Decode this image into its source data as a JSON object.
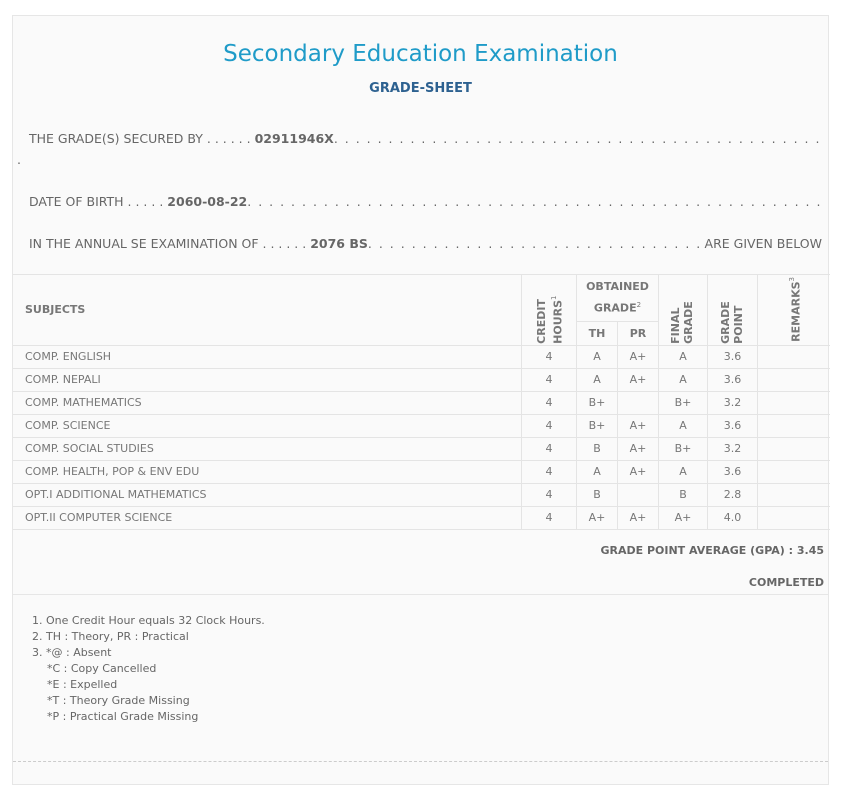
{
  "header": {
    "title": "Secondary Education Examination",
    "subtitle": "GRADE-SHEET"
  },
  "info": {
    "secured_by_label": "THE GRADE(S) SECURED BY . . . . . .",
    "symbol_no": "02911946X",
    "dob_label": "DATE OF BIRTH . . . . .",
    "dob": "2060-08-22",
    "exam_label": "IN THE ANNUAL SE EXAMINATION OF . . . . . .",
    "exam_year": "2076 BS",
    "exam_suffix": "ARE GIVEN BELOW"
  },
  "table": {
    "headers": {
      "subjects": "SUBJECTS",
      "credit_hours": "CREDIT HOURS",
      "credit_sup": "1",
      "obtained_grade": "OBTAINED GRADE",
      "obtained_sup": "2",
      "th": "TH",
      "pr": "PR",
      "final_grade": "FINAL GRADE",
      "grade_point": "GRADE POINT",
      "remarks": "REMARKS",
      "remarks_sup": "3"
    },
    "rows": [
      {
        "subject": "COMP. ENGLISH",
        "credit": "4",
        "th": "A",
        "pr": "A+",
        "final": "A",
        "gp": "3.6",
        "remarks": ""
      },
      {
        "subject": "COMP. NEPALI",
        "credit": "4",
        "th": "A",
        "pr": "A+",
        "final": "A",
        "gp": "3.6",
        "remarks": ""
      },
      {
        "subject": "COMP. MATHEMATICS",
        "credit": "4",
        "th": "B+",
        "pr": "",
        "final": "B+",
        "gp": "3.2",
        "remarks": ""
      },
      {
        "subject": "COMP. SCIENCE",
        "credit": "4",
        "th": "B+",
        "pr": "A+",
        "final": "A",
        "gp": "3.6",
        "remarks": ""
      },
      {
        "subject": "COMP. SOCIAL STUDIES",
        "credit": "4",
        "th": "B",
        "pr": "A+",
        "final": "B+",
        "gp": "3.2",
        "remarks": ""
      },
      {
        "subject": "COMP. HEALTH, POP & ENV EDU",
        "credit": "4",
        "th": "A",
        "pr": "A+",
        "final": "A",
        "gp": "3.6",
        "remarks": ""
      },
      {
        "subject": "OPT.I ADDITIONAL MATHEMATICS",
        "credit": "4",
        "th": "B",
        "pr": "",
        "final": "B",
        "gp": "2.8",
        "remarks": ""
      },
      {
        "subject": "OPT.II COMPUTER SCIENCE",
        "credit": "4",
        "th": "A+",
        "pr": "A+",
        "final": "A+",
        "gp": "4.0",
        "remarks": ""
      }
    ]
  },
  "summary": {
    "gpa": "GRADE POINT AVERAGE (GPA) : 3.45",
    "status": "COMPLETED"
  },
  "notes": [
    "1. One Credit Hour equals 32 Clock Hours.",
    "2. TH : Theory, PR : Practical",
    "3. *@ : Absent"
  ],
  "sub_notes": [
    "*C : Copy Cancelled",
    "*E : Expelled",
    "*T : Theory Grade Missing",
    "*P : Practical Grade Missing"
  ]
}
